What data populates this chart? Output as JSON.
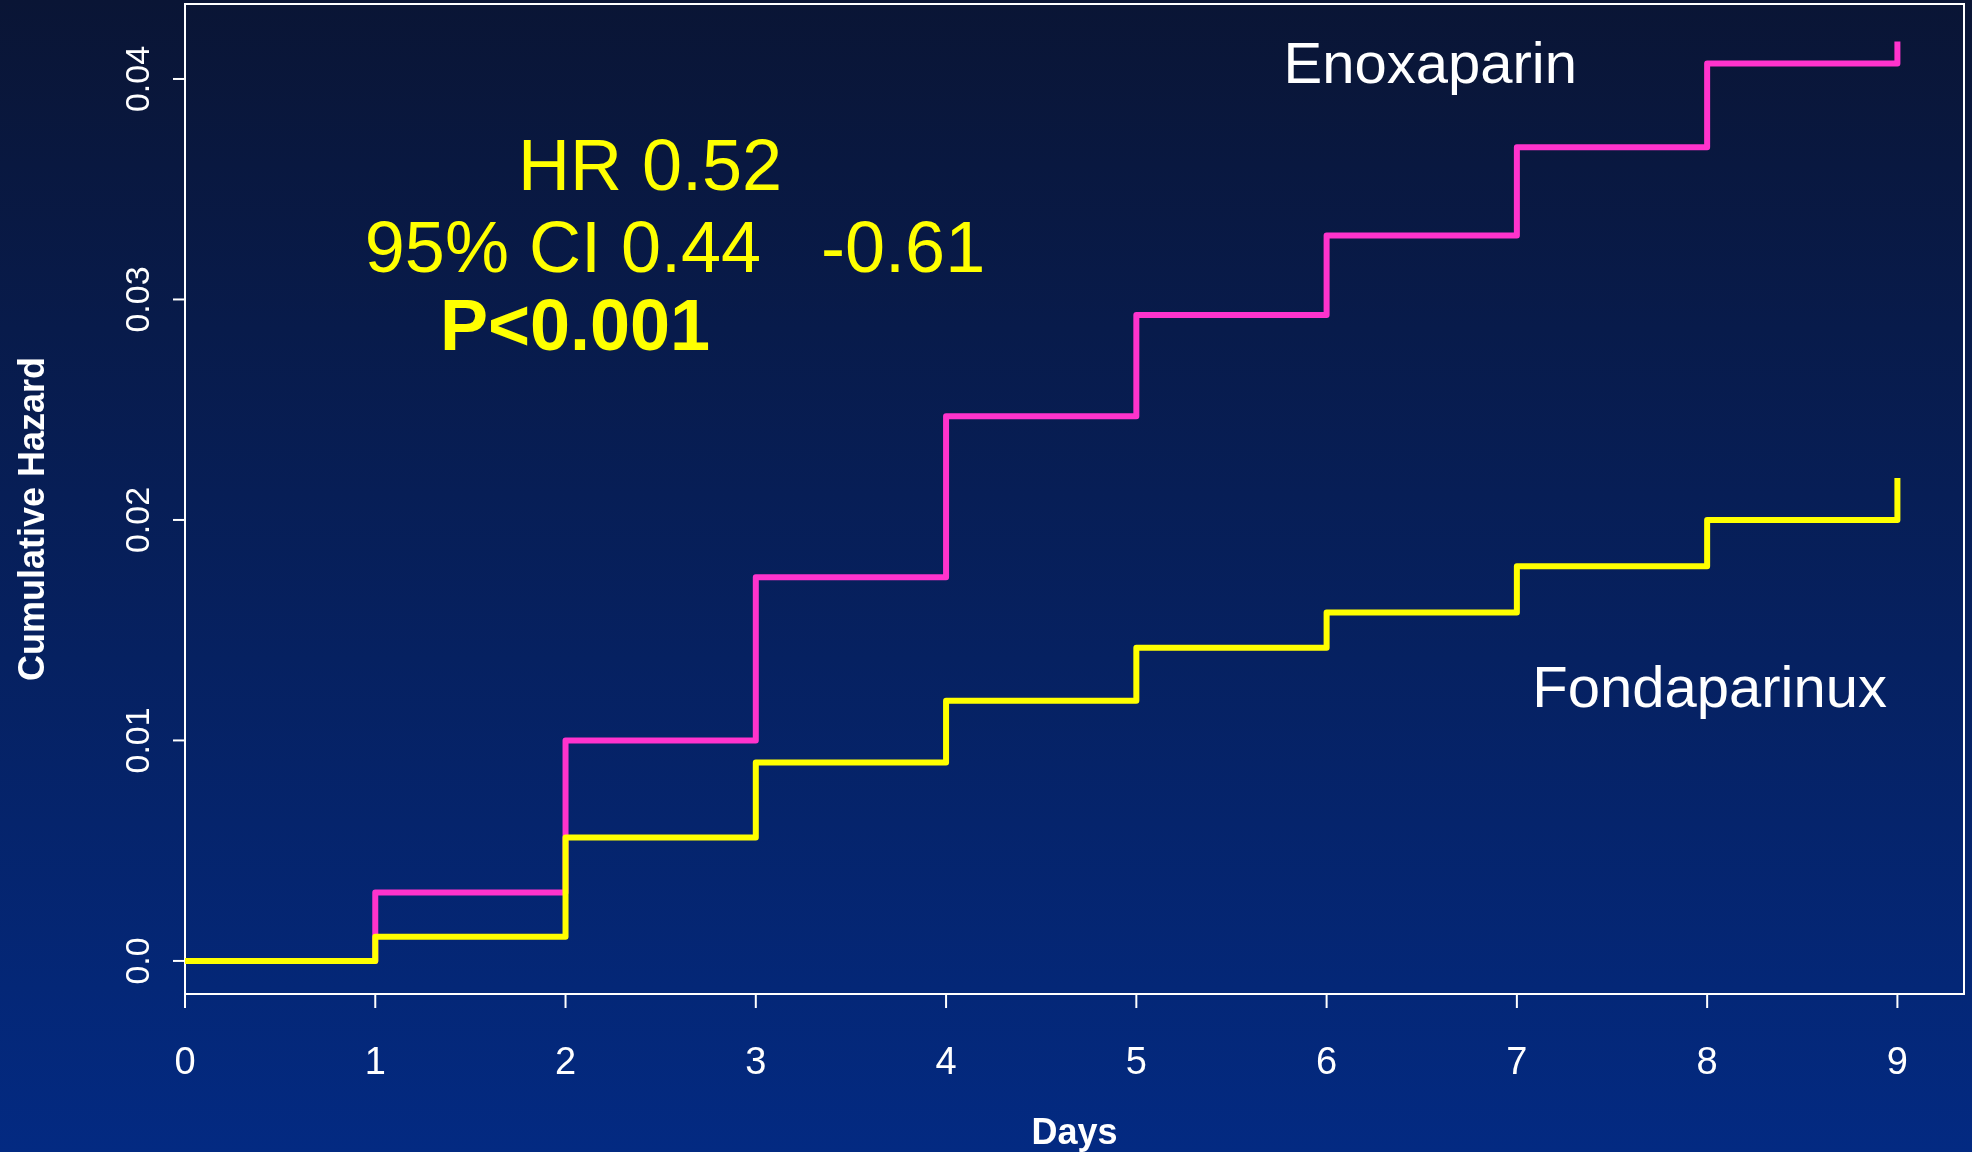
{
  "chart_data": {
    "type": "step",
    "xlabel": "Days",
    "ylabel": "Cumulative Hazard",
    "x": [
      0,
      1,
      2,
      3,
      4,
      5,
      6,
      7,
      8,
      9,
      9
    ],
    "series": [
      {
        "name": "Enoxaparin",
        "color": "#ff33cc",
        "values": [
          0,
          0.0031,
          0.01,
          0.0174,
          0.0247,
          0.0293,
          0.0329,
          0.0369,
          0.0407,
          0.0407,
          0.0417
        ]
      },
      {
        "name": "Fondaparinux",
        "color": "#ffff00",
        "values": [
          0,
          0.0011,
          0.0056,
          0.009,
          0.0118,
          0.0142,
          0.0158,
          0.0179,
          0.02,
          0.02,
          0.0219
        ]
      }
    ],
    "xlim": [
      0,
      9.35
    ],
    "xticks": [
      0,
      1,
      2,
      3,
      4,
      5,
      6,
      7,
      8,
      9
    ],
    "ylim": [
      -0.0015,
      0.0434
    ],
    "yticks": [
      {
        "value": 0,
        "label": "0.0"
      },
      0.01,
      0.02,
      0.03,
      0.04
    ],
    "annotations": [
      "HR 0.52",
      "95% CI 0.44   -0.61",
      "P<0.001"
    ],
    "grid": false
  }
}
